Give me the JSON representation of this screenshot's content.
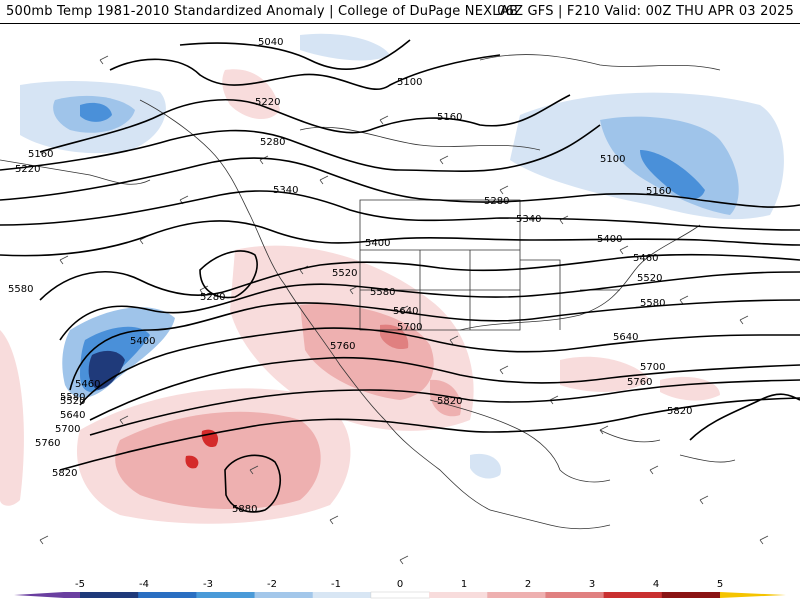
{
  "header": {
    "left_title": "500mb Temp 1981-2010 Standardized Anomaly | College of DuPage NEXLAB",
    "right_title": "06Z GFS | F210 Valid: 00Z THU APR 03 2025"
  },
  "colors": {
    "cold_strong": "#2b5fae",
    "cold_mid": "#4a90d9",
    "cold_light": "#9fc4ea",
    "cold_faint": "#d6e4f4",
    "warm_faint": "#f8dcdc",
    "warm_light": "#f0b0b0",
    "warm_mid": "#e08585",
    "warm_strong": "#d42a2a",
    "contour": "#000000",
    "coast": "#333333"
  },
  "contour_labels": [
    {
      "text": "5040"
    },
    {
      "text": "5100"
    },
    {
      "text": "5160"
    },
    {
      "text": "5220"
    },
    {
      "text": "5280"
    },
    {
      "text": "5340"
    },
    {
      "text": "5160"
    },
    {
      "text": "5220"
    },
    {
      "text": "5280"
    },
    {
      "text": "5340"
    },
    {
      "text": "5400"
    },
    {
      "text": "5100"
    },
    {
      "text": "5160"
    },
    {
      "text": "5400"
    },
    {
      "text": "5460"
    },
    {
      "text": "5520"
    },
    {
      "text": "5580"
    },
    {
      "text": "5520"
    },
    {
      "text": "5580"
    },
    {
      "text": "5640"
    },
    {
      "text": "5700"
    },
    {
      "text": "5640"
    },
    {
      "text": "5700"
    },
    {
      "text": "5760"
    },
    {
      "text": "5760"
    },
    {
      "text": "5820"
    },
    {
      "text": "5820"
    },
    {
      "text": "5280"
    },
    {
      "text": "5580"
    },
    {
      "text": "5400"
    },
    {
      "text": "5460"
    },
    {
      "text": "5520"
    },
    {
      "text": "5580"
    },
    {
      "text": "5640"
    },
    {
      "text": "5700"
    },
    {
      "text": "5760"
    },
    {
      "text": "5820"
    },
    {
      "text": "5880"
    }
  ],
  "colorbar": {
    "ticks": [
      "-5",
      "-4",
      "-3",
      "-2",
      "-1",
      "0",
      "1",
      "2",
      "3",
      "4",
      "5"
    ],
    "segment_colors": [
      "#6a3fa0",
      "#1f3a7a",
      "#2a6fc2",
      "#4a9ad8",
      "#a3c7ea",
      "#d8e6f4",
      "#ffffff",
      "#f8dcdc",
      "#eeb0b0",
      "#e08080",
      "#c93030",
      "#8a1414",
      "#f5c400"
    ]
  }
}
